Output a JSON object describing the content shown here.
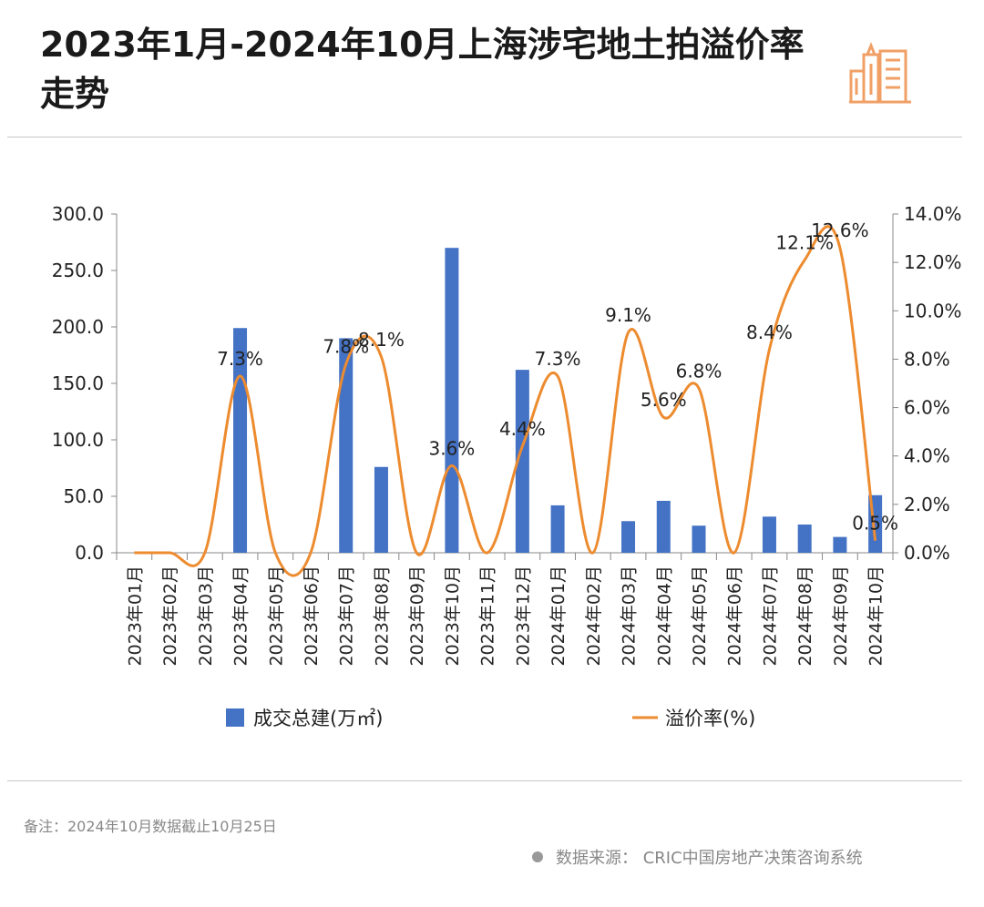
{
  "header": {
    "title": "2023年1月-2024年10月上海涉宅地土拍溢价率走势",
    "logo_icon": "buildings-icon",
    "logo_color": "#f0a066"
  },
  "footer": {
    "note": "备注：2024年10月数据截止10月25日",
    "source": "数据来源：  CRIC中国房地产决策咨询系统"
  },
  "colors": {
    "bar": "#4472c4",
    "line": "#ed8b2f"
  },
  "chart_data": {
    "type": "bar",
    "categories": [
      "2023年01月",
      "2023年02月",
      "2023年03月",
      "2023年04月",
      "2023年05月",
      "2023年06月",
      "2023年07月",
      "2023年08月",
      "2023年09月",
      "2023年10月",
      "2023年11月",
      "2023年12月",
      "2024年01月",
      "2024年02月",
      "2024年03月",
      "2024年04月",
      "2024年05月",
      "2024年06月",
      "2024年07月",
      "2024年08月",
      "2024年09月",
      "2024年10月"
    ],
    "series": [
      {
        "name": "成交总建(万㎡)",
        "type": "bar",
        "axis": "left",
        "values": [
          0,
          0,
          0,
          199,
          0,
          0,
          190,
          76,
          0,
          270,
          0,
          162,
          42,
          0,
          28,
          46,
          24,
          0,
          32,
          25,
          14,
          51
        ]
      },
      {
        "name": "溢价率(%)",
        "type": "line",
        "axis": "right",
        "values": [
          0,
          0,
          0,
          7.3,
          0,
          0,
          7.8,
          8.1,
          0,
          3.6,
          0,
          4.4,
          7.3,
          0,
          9.1,
          5.6,
          6.8,
          0,
          8.4,
          12.1,
          12.6,
          0.5
        ],
        "labels": [
          "",
          "",
          "",
          "7.3%",
          "",
          "",
          "7.8%",
          "8.1%",
          "",
          "3.6%",
          "",
          "4.4%",
          "7.3%",
          "",
          "9.1%",
          "5.6%",
          "6.8%",
          "",
          "8.4%",
          "12.1%",
          "12.6%",
          "0.5%"
        ]
      }
    ],
    "y_left": {
      "lim": [
        0,
        300
      ],
      "ticks": [
        "0.0",
        "50.0",
        "100.0",
        "150.0",
        "200.0",
        "250.0",
        "300.0"
      ]
    },
    "y_right": {
      "lim": [
        0,
        14
      ],
      "ticks": [
        "0.0%",
        "2.0%",
        "4.0%",
        "6.0%",
        "8.0%",
        "10.0%",
        "12.0%",
        "14.0%"
      ]
    },
    "legend": {
      "position": "bottom",
      "items": [
        "成交总建(万㎡)",
        "溢价率(%)"
      ]
    },
    "grid": false
  }
}
